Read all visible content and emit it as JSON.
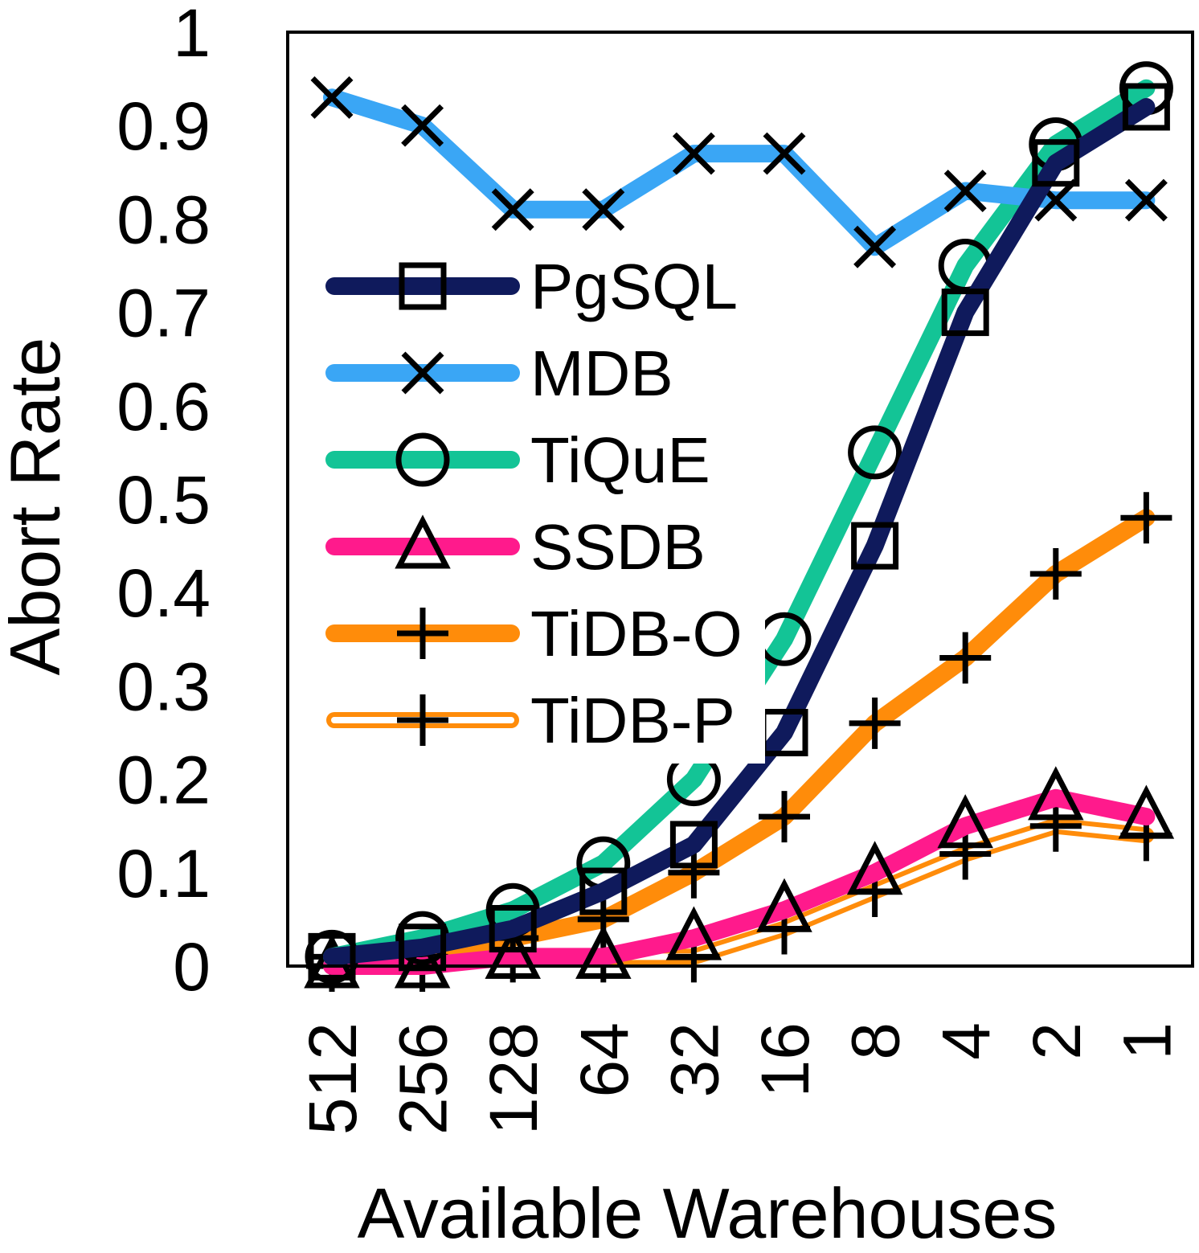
{
  "chart_data": {
    "type": "line",
    "xlabel": "Available Warehouses",
    "ylabel": "Abort Rate",
    "categories": [
      "512",
      "256",
      "128",
      "64",
      "32",
      "16",
      "8",
      "4",
      "2",
      "1"
    ],
    "ylim": [
      0,
      1
    ],
    "yticks": [
      "0",
      "0.1",
      "0.2",
      "0.3",
      "0.4",
      "0.5",
      "0.6",
      "0.7",
      "0.8",
      "0.9",
      "1"
    ],
    "grid": false,
    "legend_position": "left-middle inside",
    "series": [
      {
        "name": "PgSQL",
        "color": "#0f1a5c",
        "marker": "square",
        "style": "solid",
        "values": [
          0.01,
          0.02,
          0.04,
          0.08,
          0.13,
          0.25,
          0.45,
          0.7,
          0.86,
          0.92
        ]
      },
      {
        "name": "MDB",
        "color": "#3aa6f5",
        "marker": "x",
        "style": "solid",
        "values": [
          0.93,
          0.9,
          0.81,
          0.81,
          0.87,
          0.87,
          0.77,
          0.83,
          0.82,
          0.82
        ]
      },
      {
        "name": "TiQuE",
        "color": "#13c496",
        "marker": "circle",
        "style": "solid",
        "values": [
          0.01,
          0.03,
          0.06,
          0.11,
          0.2,
          0.35,
          0.55,
          0.75,
          0.88,
          0.94
        ]
      },
      {
        "name": "SSDB",
        "color": "#ff1a8c",
        "marker": "triangle",
        "style": "solid",
        "values": [
          0.0,
          0.0,
          0.01,
          0.01,
          0.03,
          0.06,
          0.1,
          0.15,
          0.18,
          0.16
        ]
      },
      {
        "name": "TiDB-O",
        "color": "#ff8c0a",
        "marker": "plus",
        "style": "solid",
        "values": [
          0.01,
          0.01,
          0.03,
          0.05,
          0.1,
          0.16,
          0.26,
          0.33,
          0.42,
          0.48
        ]
      },
      {
        "name": "TiDB-P",
        "color": "#ff8c0a",
        "marker": "plus",
        "style": "double",
        "values": [
          0.0,
          0.0,
          0.01,
          0.01,
          0.01,
          0.04,
          0.08,
          0.12,
          0.15,
          0.14
        ]
      }
    ]
  }
}
